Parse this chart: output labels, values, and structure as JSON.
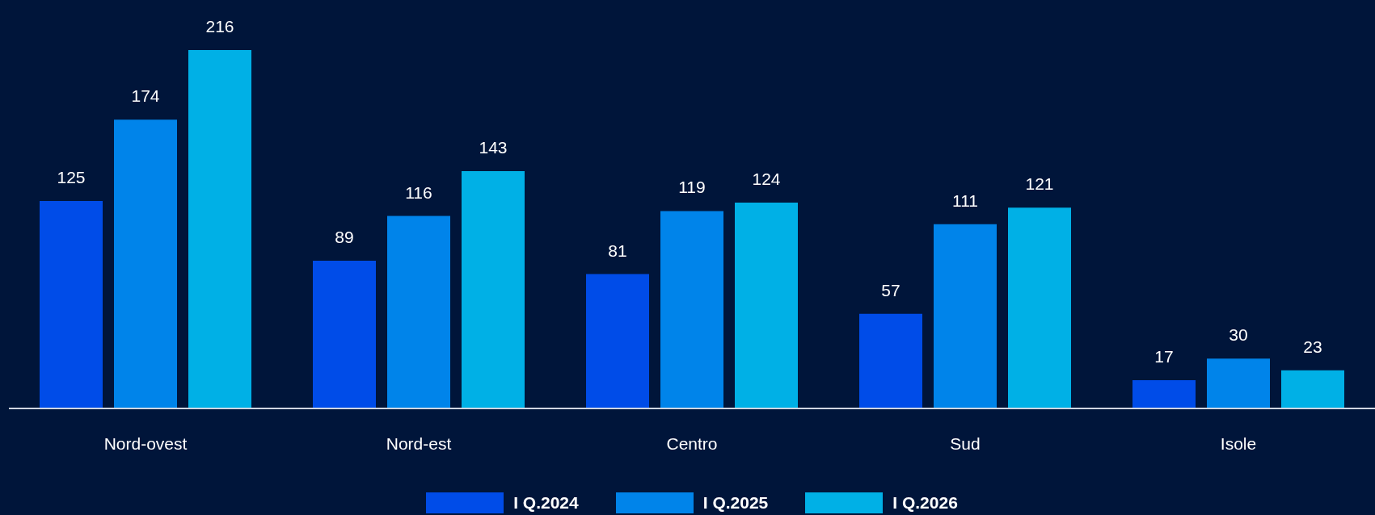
{
  "chart_data": {
    "type": "bar",
    "categories": [
      "Nord-ovest",
      "Nord-est",
      "Centro",
      "Sud",
      "Isole"
    ],
    "series": [
      {
        "name": "I Q.2024",
        "color": "#004ce8",
        "values": [
          125,
          89,
          81,
          57,
          17
        ]
      },
      {
        "name": "I Q.2025",
        "color": "#0084ea",
        "values": [
          174,
          116,
          119,
          111,
          30
        ]
      },
      {
        "name": "I Q.2026",
        "color": "#00b0e6",
        "values": [
          216,
          143,
          124,
          121,
          23
        ]
      }
    ],
    "data_labels": true,
    "legend": "bottom",
    "grid": false
  }
}
